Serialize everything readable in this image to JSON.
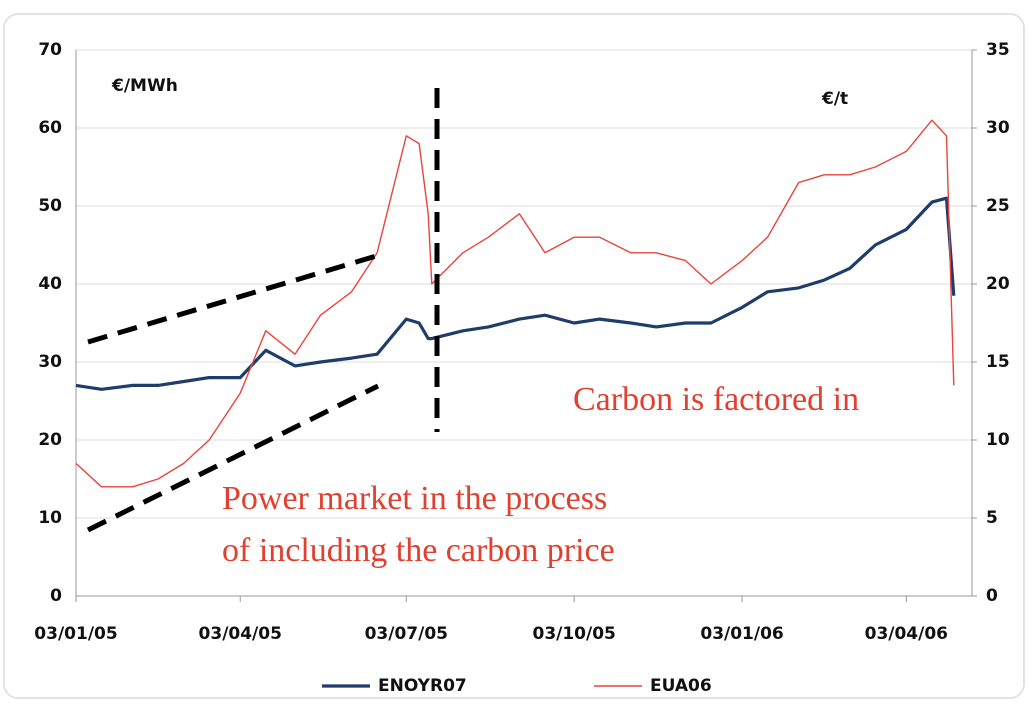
{
  "chart_data": {
    "type": "line",
    "annotations": {
      "left_unit": "€/MWh",
      "right_unit": "€/t",
      "carbon": "Carbon is factored in",
      "power": [
        "Power market in the process",
        "of including the carbon price"
      ]
    },
    "x": [
      "03/01/05",
      "17/01/05",
      "03/02/05",
      "17/02/05",
      "03/03/05",
      "17/03/05",
      "03/04/05",
      "17/04/05",
      "03/05/05",
      "17/05/05",
      "03/06/05",
      "17/06/05",
      "03/07/05",
      "10/07/05",
      "15/07/05",
      "17/07/05",
      "03/08/05",
      "17/08/05",
      "03/09/05",
      "17/09/05",
      "03/10/05",
      "17/10/05",
      "03/11/05",
      "17/11/05",
      "03/12/05",
      "17/12/05",
      "03/01/06",
      "17/01/06",
      "03/02/06",
      "17/02/06",
      "03/03/06",
      "17/03/06",
      "03/04/06",
      "17/04/06",
      "25/04/06",
      "29/04/06"
    ],
    "series": [
      {
        "name": "ENOYR07",
        "color": "#1f3d6b",
        "axis": "y",
        "values": [
          27,
          26.5,
          27,
          27,
          27.5,
          28,
          28,
          31.5,
          29.5,
          30,
          30.5,
          31,
          35.5,
          35,
          33,
          33,
          34,
          34.5,
          35.5,
          36,
          35,
          35.5,
          35,
          34.5,
          35,
          35,
          37,
          39,
          39.5,
          40.5,
          42,
          45,
          47,
          50.5,
          51,
          38.5
        ]
      },
      {
        "name": "EUA06",
        "color": "#e8453c",
        "axis": "y2",
        "values": [
          8.5,
          7,
          7,
          7.5,
          8.5,
          10,
          13,
          17,
          15.5,
          18,
          19.5,
          22,
          29.5,
          29,
          24.5,
          20,
          22,
          23,
          24.5,
          22,
          23,
          23,
          22,
          22,
          21.5,
          20,
          21.5,
          23,
          26.5,
          27,
          27,
          27.5,
          28.5,
          30.5,
          29.5,
          13.5
        ]
      }
    ],
    "xlim": [
      "03/01/05",
      "09/05/06"
    ],
    "xticks": [
      "03/01/05",
      "03/04/05",
      "03/07/05",
      "03/10/05",
      "03/01/06",
      "03/04/06"
    ],
    "ylim": [
      0,
      70
    ],
    "yticks": [
      0,
      10,
      20,
      30,
      40,
      50,
      60,
      70
    ],
    "y2lim": [
      0,
      35
    ],
    "y2ticks": [
      0,
      5,
      10,
      15,
      20,
      25,
      30,
      35
    ],
    "grid": true
  }
}
